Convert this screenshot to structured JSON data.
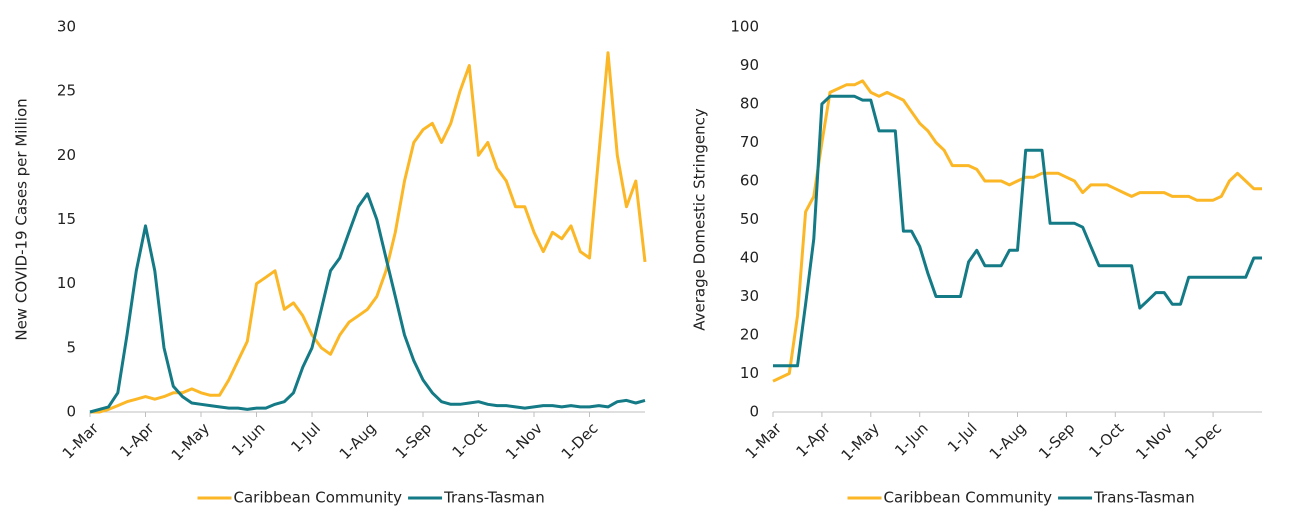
{
  "chart_data": [
    {
      "type": "line",
      "y_label": "New COVID-19 Cases per Million",
      "legend": "bottom",
      "categories": [
        "1-Mar",
        null,
        null,
        null,
        null,
        null,
        "1-Apr",
        null,
        null,
        null,
        null,
        null,
        "1-May",
        null,
        null,
        null,
        null,
        null,
        "1-Jun",
        null,
        null,
        null,
        null,
        null,
        "1-Jul",
        null,
        null,
        null,
        null,
        null,
        "1-Aug",
        null,
        null,
        null,
        null,
        null,
        "1-Sep",
        null,
        null,
        null,
        null,
        null,
        "1-Oct",
        null,
        null,
        null,
        null,
        null,
        "1-Nov",
        null,
        null,
        null,
        null,
        null,
        "1-Dec",
        null,
        null,
        null,
        null,
        null,
        null
      ],
      "ylim": [
        0,
        30
      ],
      "yticks": [
        0,
        5,
        10,
        15,
        20,
        25,
        30
      ],
      "series": [
        {
          "name": "Caribbean Community",
          "color": "#fbb726",
          "values": [
            0,
            0,
            0.2,
            0.5,
            0.8,
            1.0,
            1.2,
            1.0,
            1.2,
            1.5,
            1.5,
            1.8,
            1.5,
            1.3,
            1.3,
            2.5,
            4.0,
            5.5,
            10,
            10.5,
            11,
            8,
            8.5,
            7.5,
            6,
            5,
            4.5,
            6,
            7,
            7.5,
            8,
            9,
            11,
            14,
            18,
            21,
            22,
            22.5,
            21,
            22.5,
            25,
            27,
            20,
            21,
            19,
            18,
            16,
            16,
            14,
            12.5,
            14,
            13.5,
            14.5,
            12.5,
            12,
            20,
            28,
            20,
            16,
            18,
            11.7
          ]
        },
        {
          "name": "Trans-Tasman",
          "color": "#137a86",
          "values": [
            0,
            0.2,
            0.4,
            1.5,
            6,
            11,
            14.5,
            11,
            5,
            2,
            1.2,
            0.7,
            0.6,
            0.5,
            0.4,
            0.3,
            0.3,
            0.2,
            0.3,
            0.3,
            0.6,
            0.8,
            1.5,
            3.5,
            5,
            8,
            11,
            12,
            14,
            16,
            17,
            15,
            12,
            9,
            6,
            4,
            2.5,
            1.5,
            0.8,
            0.6,
            0.6,
            0.7,
            0.8,
            0.6,
            0.5,
            0.5,
            0.4,
            0.3,
            0.4,
            0.5,
            0.5,
            0.4,
            0.5,
            0.4,
            0.4,
            0.5,
            0.4,
            0.8,
            0.9,
            0.7,
            0.9
          ]
        }
      ]
    },
    {
      "type": "line",
      "y_label": "Average Domestic Stringency",
      "legend": "bottom",
      "categories": [
        "1-Mar",
        null,
        null,
        null,
        null,
        null,
        "1-Apr",
        null,
        null,
        null,
        null,
        null,
        "1-May",
        null,
        null,
        null,
        null,
        null,
        "1-Jun",
        null,
        null,
        null,
        null,
        null,
        "1-Jul",
        null,
        null,
        null,
        null,
        null,
        "1-Aug",
        null,
        null,
        null,
        null,
        null,
        "1-Sep",
        null,
        null,
        null,
        null,
        null,
        "1-Oct",
        null,
        null,
        null,
        null,
        null,
        "1-Nov",
        null,
        null,
        null,
        null,
        null,
        "1-Dec",
        null,
        null,
        null,
        null,
        null,
        null
      ],
      "ylim": [
        0,
        100
      ],
      "yticks": [
        0,
        10,
        20,
        30,
        40,
        50,
        60,
        70,
        80,
        90,
        100
      ],
      "series": [
        {
          "name": "Caribbean Community",
          "color": "#fbb726",
          "values": [
            8,
            9,
            10,
            25,
            52,
            56,
            70,
            83,
            84,
            85,
            85,
            86,
            83,
            82,
            83,
            82,
            81,
            78,
            75,
            73,
            70,
            68,
            64,
            64,
            64,
            63,
            60,
            60,
            60,
            59,
            60,
            61,
            61,
            62,
            62,
            62,
            61,
            60,
            57,
            59,
            59,
            59,
            58,
            57,
            56,
            57,
            57,
            57,
            57,
            56,
            56,
            56,
            55,
            55,
            55,
            56,
            60,
            62,
            60,
            58,
            58
          ]
        },
        {
          "name": "Trans-Tasman",
          "color": "#137a86",
          "values": [
            12,
            12,
            12,
            12,
            28,
            45,
            80,
            82,
            82,
            82,
            82,
            81,
            81,
            73,
            73,
            73,
            47,
            47,
            43,
            36,
            30,
            30,
            30,
            30,
            39,
            42,
            38,
            38,
            38,
            42,
            42,
            68,
            68,
            68,
            49,
            49,
            49,
            49,
            48,
            43,
            38,
            38,
            38,
            38,
            38,
            27,
            29,
            31,
            31,
            28,
            28,
            35,
            35,
            35,
            35,
            35,
            35,
            35,
            35,
            40,
            40
          ]
        }
      ]
    }
  ]
}
